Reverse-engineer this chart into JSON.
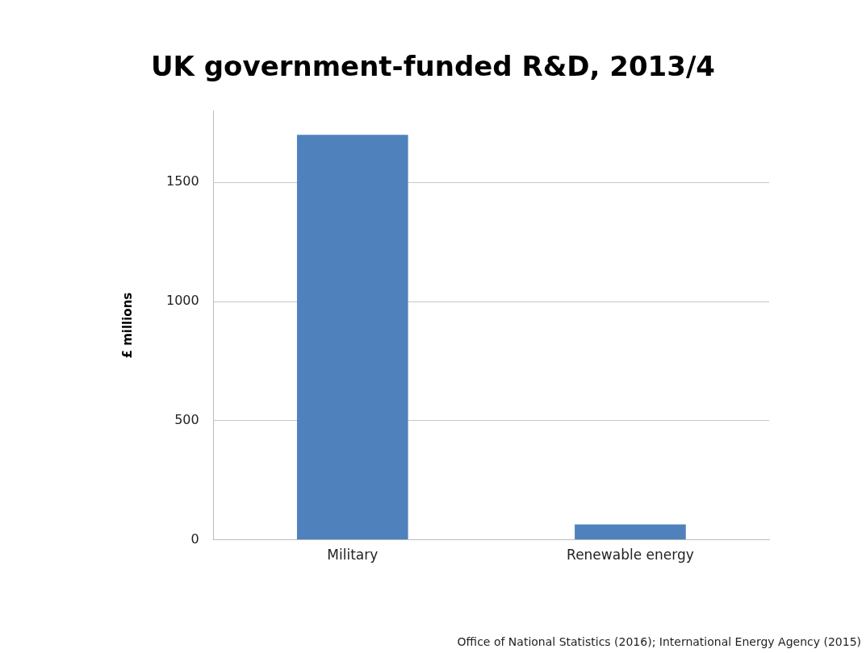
{
  "chart_data": {
    "type": "bar",
    "title": "UK government-funded R&D, 2013/4",
    "ylabel": "£ millions",
    "categories": [
      "Military",
      "Renewable energy"
    ],
    "values": [
      1700,
      65
    ],
    "color": "#4f81bd",
    "ylim": [
      0,
      1800
    ],
    "yticks": [
      0,
      500,
      1000,
      1500
    ],
    "grid": "y",
    "legend": false,
    "annotations": [
      "Office of National Statistics (2016); International Energy Agency (2015)"
    ]
  }
}
